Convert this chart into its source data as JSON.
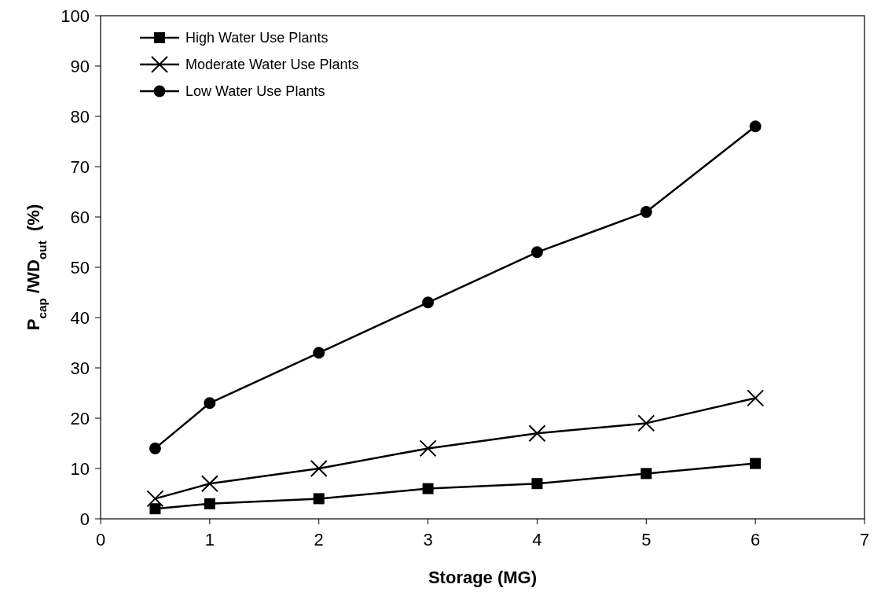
{
  "chart_data": {
    "type": "line",
    "xlabel": "Storage (MG)",
    "ylabel": "P$_{cap}$ /WD$_{out}$  (%)",
    "x": [
      0.5,
      1,
      2,
      3,
      4,
      5,
      6
    ],
    "series": [
      {
        "name": "High Water Use Plants",
        "color": "#000000",
        "marker": "square",
        "values": [
          2,
          3,
          4,
          6,
          7,
          9,
          11
        ]
      },
      {
        "name": "Moderate Water Use Plants",
        "color": "#000000",
        "marker": "cross",
        "values": [
          4,
          7,
          10,
          14,
          17,
          19,
          24
        ]
      },
      {
        "name": "Low Water Use Plants",
        "color": "#000000",
        "marker": "circle",
        "values": [
          14,
          23,
          33,
          43,
          53,
          61,
          78
        ]
      }
    ],
    "xlim": [
      0,
      7
    ],
    "xticks": [
      0,
      1,
      2,
      3,
      4,
      5,
      6,
      7
    ],
    "ylim": [
      0,
      100
    ],
    "yticks": [
      0,
      10,
      20,
      30,
      40,
      50,
      60,
      70,
      80,
      90,
      100
    ],
    "grid": false,
    "legend": "top left",
    "line_style": "solid"
  }
}
